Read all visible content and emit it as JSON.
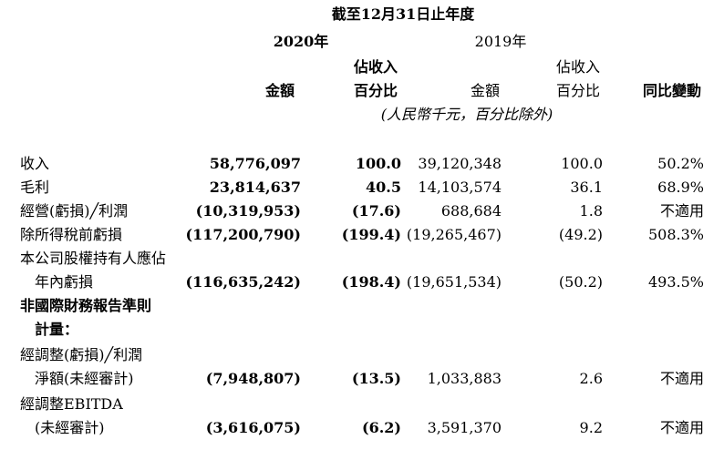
{
  "header": {
    "period": "截至12月31日止年度",
    "year_2020": "2020年",
    "year_2019": "2019年",
    "col_amount": "金額",
    "col_pct_line1": "佔收入",
    "col_pct_line2": "百分比",
    "col_amount_2019": "金額",
    "col_pct_2019_line1": "佔收入",
    "col_pct_2019_line2": "百分比",
    "col_yoy": "同比變動",
    "unit_note": "(人民幣千元，百分比除外)"
  },
  "rows": [
    {
      "label": "收入",
      "amount_2020": "58,776,097",
      "pct_2020": "100.0",
      "amount_2019": "39,120,348",
      "pct_2019": "100.0",
      "yoy": "50.2%"
    },
    {
      "label": "毛利",
      "amount_2020": "23,814,637",
      "pct_2020": "40.5",
      "amount_2019": "14,103,574",
      "pct_2019": "36.1",
      "yoy": "68.9%"
    },
    {
      "label": "經營(虧損)╱利潤",
      "amount_2020": "(10,319,953)",
      "pct_2020": "(17.6)",
      "amount_2019": "688,684",
      "pct_2019": "1.8",
      "yoy": "不適用"
    },
    {
      "label": "除所得稅前虧損",
      "amount_2020": "(117,200,790)",
      "pct_2020": "(199.4)",
      "amount_2019": "(19,265,467)",
      "pct_2019": "(49.2)",
      "yoy": "508.3%"
    },
    {
      "label": "本公司股權持有人應佔",
      "label2": "年內虧損",
      "amount_2020": "(116,635,242)",
      "pct_2020": "(198.4)",
      "amount_2019": "(19,651,534)",
      "pct_2019": "(50.2)",
      "yoy": "493.5%"
    }
  ],
  "non_ifrs": {
    "heading1": "非國際財務報告準則",
    "heading2": "計量：",
    "rows": [
      {
        "label": "經調整(虧損)╱利潤",
        "label2": "淨額(未經審計)",
        "amount_2020": "(7,948,807)",
        "pct_2020": "(13.5)",
        "amount_2019": "1,033,883",
        "pct_2019": "2.6",
        "yoy": "不適用"
      },
      {
        "label": "經調整EBITDA",
        "label2": "(未經審計)",
        "amount_2020": "(3,616,075)",
        "pct_2020": "(6.2)",
        "amount_2019": "3,591,370",
        "pct_2019": "9.2",
        "yoy": "不適用"
      }
    ]
  }
}
